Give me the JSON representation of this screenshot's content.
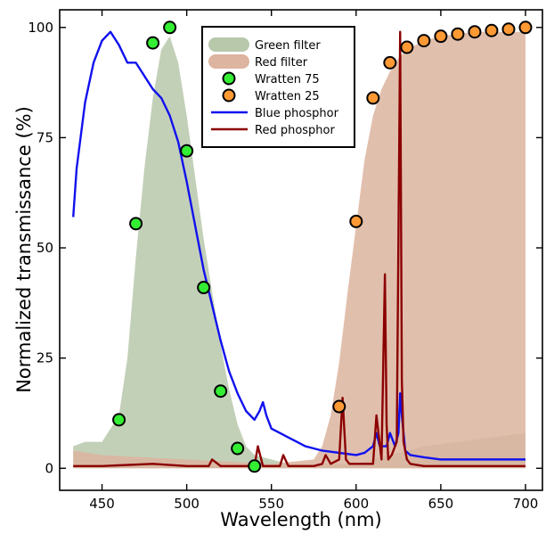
{
  "chart_data": {
    "type": "line",
    "xlabel": "Wavelength (nm)",
    "ylabel": "Normalized transmissance (%)",
    "xlim": [
      425,
      710
    ],
    "ylim": [
      -5,
      104
    ],
    "x_ticks": [
      450,
      500,
      550,
      600,
      650,
      700
    ],
    "y_ticks": [
      0,
      25,
      50,
      75,
      100
    ],
    "grid": false,
    "legend_position": "top-center",
    "colors": {
      "green_filter": "#b8c8ab",
      "red_filter": "#dcb49f",
      "wratten75": "#33ee33",
      "wratten25": "#ff9933",
      "blue_phosphor": "#1111ee",
      "red_phosphor": "#8b0000"
    },
    "legend": [
      {
        "label": "Green filter",
        "kind": "area",
        "color": "#b8c8ab"
      },
      {
        "label": "Red filter",
        "kind": "area",
        "color": "#dcb49f"
      },
      {
        "label": "Wratten 75",
        "kind": "marker",
        "color": "#33ee33"
      },
      {
        "label": "Wratten 25",
        "kind": "marker",
        "color": "#ff9933"
      },
      {
        "label": "Blue phosphor",
        "kind": "line",
        "color": "#1111ee"
      },
      {
        "label": "Red phosphor",
        "kind": "line",
        "color": "#8b0000"
      }
    ],
    "series": [
      {
        "name": "Green filter",
        "type": "area",
        "x": [
          433,
          440,
          450,
          460,
          465,
          470,
          475,
          480,
          485,
          490,
          495,
          500,
          505,
          510,
          515,
          520,
          525,
          530,
          535,
          540,
          550,
          560,
          570,
          580,
          590,
          600,
          620,
          640,
          660,
          680,
          700
        ],
        "y": [
          5,
          6,
          6,
          12,
          25,
          48,
          68,
          84,
          95,
          98,
          92,
          80,
          66,
          52,
          40,
          28,
          18,
          10,
          5,
          3,
          2,
          1,
          1,
          1,
          1,
          1,
          3,
          5,
          6,
          7,
          8
        ]
      },
      {
        "name": "Red filter",
        "type": "area",
        "x": [
          433,
          450,
          500,
          550,
          575,
          580,
          585,
          590,
          595,
          600,
          605,
          610,
          615,
          620,
          625,
          630,
          640,
          650,
          660,
          670,
          680,
          690,
          700
        ],
        "y": [
          4,
          3,
          2,
          1,
          2,
          5,
          12,
          24,
          40,
          55,
          70,
          80,
          86,
          90,
          93,
          95,
          97,
          98,
          98.5,
          99,
          99,
          99,
          99
        ]
      },
      {
        "name": "Wratten 75",
        "type": "scatter",
        "x": [
          460,
          470,
          480,
          490,
          500,
          510,
          520,
          530,
          540
        ],
        "y": [
          11,
          55.5,
          96.5,
          100,
          72,
          41,
          17.5,
          4.5,
          0.5
        ]
      },
      {
        "name": "Wratten 25",
        "type": "scatter",
        "x": [
          590,
          600,
          610,
          620,
          630,
          640,
          650,
          660,
          670,
          680,
          690,
          700
        ],
        "y": [
          14,
          56,
          84,
          92,
          95.5,
          97,
          98,
          98.5,
          99,
          99.3,
          99.6,
          100
        ]
      },
      {
        "name": "Blue phosphor",
        "type": "line",
        "x": [
          433,
          435,
          440,
          445,
          450,
          455,
          460,
          465,
          470,
          475,
          480,
          485,
          490,
          495,
          500,
          505,
          510,
          515,
          520,
          525,
          530,
          535,
          540,
          543,
          545,
          547,
          550,
          555,
          560,
          565,
          570,
          575,
          580,
          590,
          600,
          605,
          610,
          612,
          614,
          618,
          620,
          623,
          625,
          626,
          627,
          629,
          632,
          640,
          650,
          660,
          670,
          680,
          690,
          700
        ],
        "y": [
          57,
          68,
          83,
          92,
          97,
          99,
          96,
          92,
          92,
          89,
          86,
          84,
          80,
          74,
          65,
          55,
          45,
          37,
          29,
          22,
          17,
          13,
          11,
          13,
          15,
          12,
          9,
          8,
          7,
          6,
          5,
          4.5,
          4,
          3.5,
          3,
          3.5,
          5,
          8,
          5,
          5,
          8,
          5,
          8,
          17,
          12,
          4,
          3,
          2.5,
          2,
          2,
          2,
          2,
          2,
          2
        ]
      },
      {
        "name": "Red phosphor",
        "type": "line",
        "x": [
          433,
          450,
          480,
          500,
          513,
          515,
          520,
          540,
          542,
          545,
          555,
          557,
          560,
          575,
          580,
          582,
          585,
          590,
          592,
          594,
          596,
          600,
          610,
          612,
          615,
          617,
          618,
          619,
          621,
          624,
          626,
          627,
          628,
          630,
          632,
          640,
          660,
          680,
          700
        ],
        "y": [
          0.5,
          0.5,
          1,
          0.5,
          0.5,
          2,
          0.5,
          0.5,
          5,
          0.5,
          0.5,
          3,
          0.5,
          0.5,
          1,
          3,
          1,
          2,
          16,
          2,
          1,
          1,
          1,
          12,
          2,
          44,
          10,
          2,
          3,
          6,
          99,
          20,
          6,
          2,
          1,
          0.5,
          0.5,
          0.5,
          0.5
        ]
      }
    ]
  }
}
